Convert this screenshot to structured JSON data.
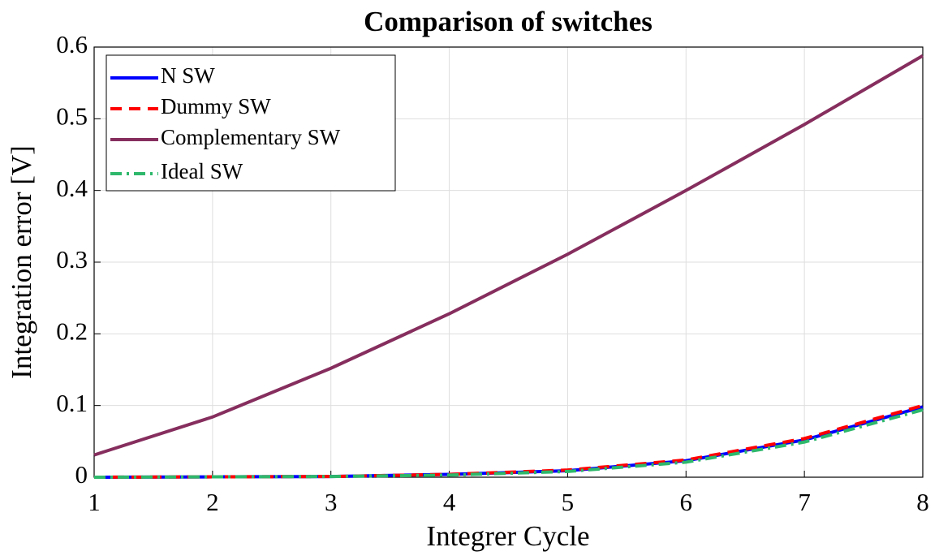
{
  "chart_data": {
    "type": "line",
    "title": "Comparison of switches",
    "xlabel": "Integrer Cycle",
    "ylabel": "Integration error [V]",
    "x": [
      1,
      2,
      3,
      4,
      5,
      6,
      7,
      8
    ],
    "series": [
      {
        "name": "N SW",
        "color": "#0000ff",
        "dash": "solid",
        "values": [
          0,
          0.0005,
          0.001,
          0.004,
          0.009,
          0.023,
          0.052,
          0.098
        ]
      },
      {
        "name": "Dummy SW",
        "color": "#ff0000",
        "dash": "dashed",
        "values": [
          0,
          0.0005,
          0.001,
          0.004,
          0.01,
          0.024,
          0.054,
          0.1
        ]
      },
      {
        "name": "Complementary SW",
        "color": "#862e5e",
        "dash": "solid",
        "values": [
          0.031,
          0.084,
          0.152,
          0.228,
          0.311,
          0.4,
          0.492,
          0.588
        ]
      },
      {
        "name": "Ideal SW",
        "color": "#2eb86b",
        "dash": "dashdot",
        "values": [
          0,
          0.0005,
          0.001,
          0.003,
          0.008,
          0.021,
          0.049,
          0.094
        ]
      }
    ],
    "xlim": [
      1,
      8
    ],
    "xticks": [
      1,
      2,
      3,
      4,
      5,
      6,
      7,
      8
    ],
    "ylim": [
      0,
      0.6
    ],
    "yticks": [
      0,
      0.1,
      0.2,
      0.3,
      0.4,
      0.5,
      0.6
    ],
    "grid": true,
    "legend": "upper left"
  }
}
